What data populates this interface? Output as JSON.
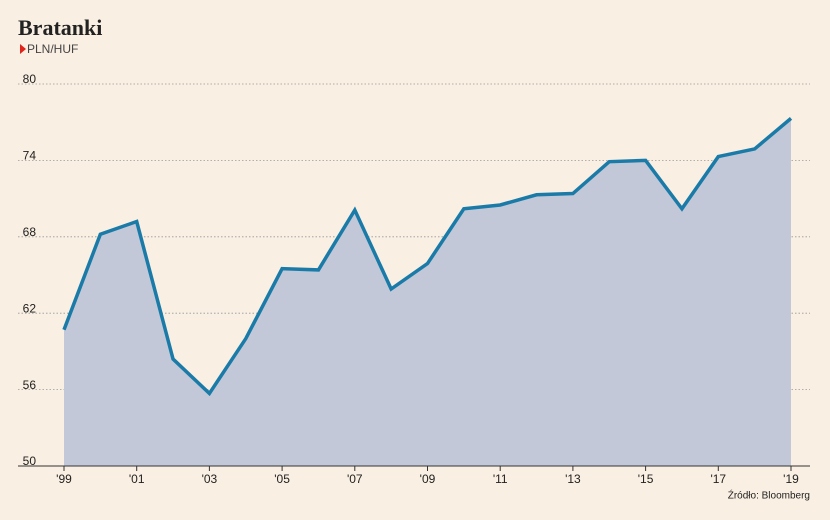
{
  "chart_data": {
    "type": "area",
    "title": "Bratanki",
    "subtitle": "PLN/HUF",
    "source": "Źródło: Bloomberg",
    "categories": [
      "'99",
      null,
      "'01",
      null,
      "'03",
      null,
      "'05",
      null,
      "'07",
      null,
      "'09",
      null,
      "'11",
      null,
      "'13",
      null,
      "'15",
      null,
      "'17",
      null,
      "'19"
    ],
    "series": [
      {
        "name": "PLN/HUF",
        "color": "#1a7ba8",
        "fill": "#c2c8d8",
        "values": [
          60.7,
          68.2,
          69.2,
          58.4,
          55.7,
          60.0,
          65.5,
          65.4,
          70.1,
          63.9,
          65.9,
          70.2,
          70.5,
          71.3,
          71.4,
          73.9,
          74.0,
          70.2,
          74.3,
          74.9,
          77.3
        ]
      }
    ],
    "ylim": [
      50,
      80
    ],
    "yticks": [
      50,
      56,
      62,
      68,
      74,
      80
    ],
    "grid": true
  }
}
